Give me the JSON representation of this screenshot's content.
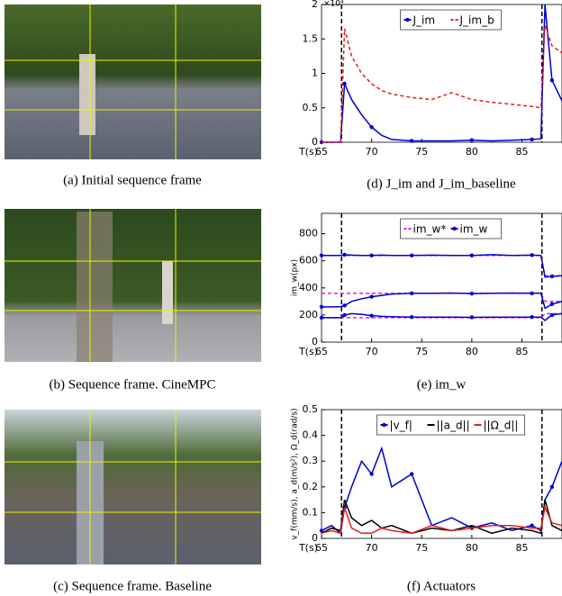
{
  "photos": [
    {
      "caption": "(a) Initial sequence frame"
    },
    {
      "caption": "(b) Sequence frame. CineMPC"
    },
    {
      "caption": "(c) Sequence frame. Baseline"
    }
  ],
  "chart_data": [
    {
      "type": "line",
      "caption": "(d) J_im and J_im_baseline",
      "xlabel": "T(s)",
      "y_multiplier": "×10⁴",
      "x": [
        65,
        66,
        66.9,
        67.3,
        68,
        69,
        70,
        71,
        72,
        74,
        76,
        78,
        80,
        82,
        84,
        86,
        86.9,
        87.3,
        88,
        89
      ],
      "xlim": [
        65,
        89
      ],
      "xticks": [
        65,
        70,
        75,
        80,
        85
      ],
      "ylim": [
        0,
        2
      ],
      "yticks": [
        0,
        0.5,
        1,
        1.5,
        2
      ],
      "vlines": [
        67,
        87
      ],
      "legend": "upper-center",
      "series": [
        {
          "name": "J_im",
          "color": "#0000cc",
          "dash": false,
          "marker": true,
          "tracks": [
            [
              0,
              0,
              0,
              0.85,
              0.62,
              0.4,
              0.22,
              0.1,
              0.04,
              0.02,
              0.02,
              0.02,
              0.03,
              0.02,
              0.03,
              0.04,
              0.05,
              2,
              0.9,
              0.6
            ]
          ]
        },
        {
          "name": "J_im_b",
          "color": "#e02020",
          "dash": true,
          "marker": false,
          "tracks": [
            [
              0,
              0,
              0,
              1.65,
              1.25,
              1.0,
              0.85,
              0.75,
              0.7,
              0.65,
              0.62,
              0.72,
              0.62,
              0.58,
              0.55,
              0.52,
              0.5,
              1.7,
              1.4,
              1.3
            ]
          ]
        }
      ]
    },
    {
      "type": "line",
      "caption": "(e) im_w",
      "xlabel": "T(s)",
      "ylabel": "im_w(px)",
      "x": [
        65,
        66,
        66.9,
        67.3,
        68,
        69,
        70,
        71,
        72,
        74,
        76,
        78,
        80,
        82,
        84,
        86,
        86.9,
        87.3,
        88,
        89
      ],
      "xlim": [
        65,
        89
      ],
      "xticks": [
        65,
        70,
        75,
        80,
        85
      ],
      "ylim": [
        0,
        950
      ],
      "yticks": [
        0,
        200,
        400,
        600,
        800
      ],
      "vlines": [
        67,
        87
      ],
      "legend": "upper-center",
      "series": [
        {
          "name": "im_w*",
          "color": "#e020e0",
          "dash": true,
          "marker": false,
          "tracks": [
            [
              640,
              640,
              640,
              640,
              640,
              640,
              640,
              640,
              640,
              640,
              640,
              640,
              640,
              640,
              640,
              640,
              640,
              490,
              490,
              490
            ],
            [
              360,
              360,
              360,
              360,
              360,
              360,
              360,
              360,
              360,
              360,
              360,
              360,
              360,
              360,
              360,
              360,
              360,
              300,
              300,
              300
            ],
            [
              180,
              180,
              180,
              180,
              180,
              180,
              180,
              180,
              180,
              180,
              180,
              180,
              180,
              180,
              180,
              180,
              180,
              210,
              210,
              210
            ]
          ]
        },
        {
          "name": "im_w",
          "color": "#0000cc",
          "dash": false,
          "marker": true,
          "tracks": [
            [
              640,
              640,
              640,
              645,
              642,
              640,
              640,
              642,
              640,
              640,
              642,
              640,
              640,
              645,
              640,
              642,
              640,
              480,
              485,
              490
            ],
            [
              260,
              260,
              262,
              270,
              300,
              320,
              335,
              345,
              355,
              360,
              360,
              362,
              358,
              360,
              362,
              360,
              362,
              250,
              280,
              300
            ],
            [
              180,
              180,
              180,
              200,
              210,
              205,
              195,
              190,
              188,
              185,
              185,
              185,
              183,
              185,
              185,
              185,
              185,
              160,
              200,
              210
            ]
          ]
        }
      ]
    },
    {
      "type": "line",
      "caption": "(f) Actuators",
      "xlabel": "T(s)",
      "ylabel": "v_f(mm/s), a_d(m/s²), Ω_d(rad/s)",
      "x": [
        65,
        66,
        66.9,
        67.3,
        68,
        69,
        70,
        71,
        72,
        74,
        76,
        78,
        80,
        82,
        84,
        86,
        86.9,
        87.3,
        88,
        89
      ],
      "xlim": [
        65,
        89
      ],
      "xticks": [
        65,
        70,
        75,
        80,
        85
      ],
      "ylim": [
        0,
        0.5
      ],
      "yticks": [
        0,
        0.1,
        0.2,
        0.3,
        0.4,
        0.5
      ],
      "vlines": [
        67,
        87
      ],
      "legend": "upper-center",
      "series": [
        {
          "name": "|v_f|",
          "color": "#0000cc",
          "dash": false,
          "marker": true,
          "tracks": [
            [
              0.03,
              0.05,
              0.02,
              0.12,
              0.2,
              0.3,
              0.25,
              0.35,
              0.2,
              0.25,
              0.05,
              0.08,
              0.04,
              0.06,
              0.03,
              0.05,
              0.03,
              0.15,
              0.2,
              0.3
            ]
          ]
        },
        {
          "name": "||a_d||",
          "color": "#000000",
          "dash": false,
          "marker": false,
          "tracks": [
            [
              0.02,
              0.04,
              0.03,
              0.15,
              0.08,
              0.05,
              0.07,
              0.04,
              0.05,
              0.02,
              0.04,
              0.03,
              0.05,
              0.02,
              0.04,
              0.03,
              0.02,
              0.15,
              0.05,
              0.03
            ]
          ]
        },
        {
          "name": "||Ω_d||",
          "color": "#e02020",
          "dash": false,
          "marker": false,
          "tracks": [
            [
              0.02,
              0.03,
              0.02,
              0.12,
              0.04,
              0.02,
              0.02,
              0.04,
              0.03,
              0.02,
              0.05,
              0.03,
              0.04,
              0.05,
              0.05,
              0.04,
              0.04,
              0.12,
              0.06,
              0.05
            ]
          ]
        }
      ]
    }
  ]
}
